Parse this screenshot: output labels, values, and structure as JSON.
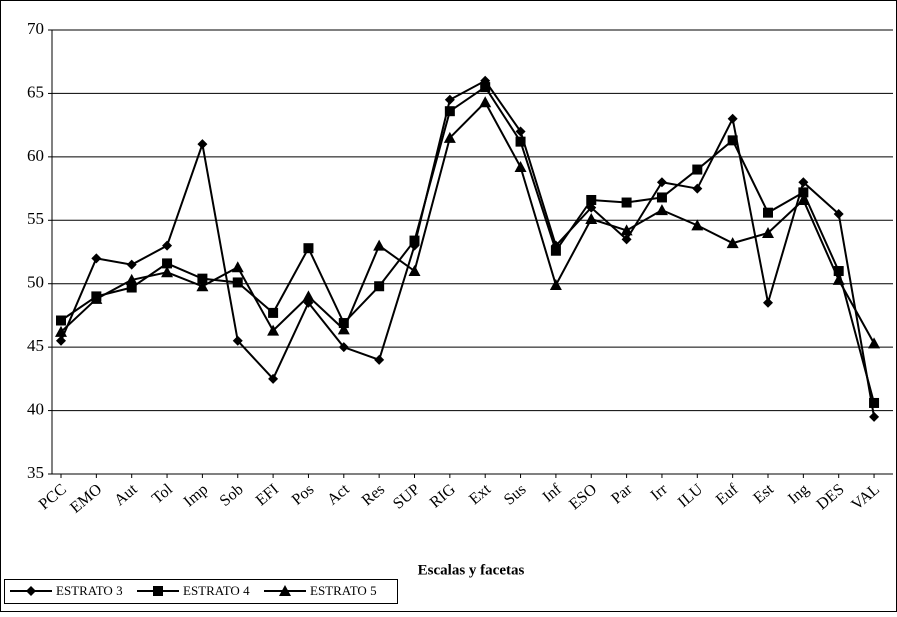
{
  "chart_data": {
    "type": "line",
    "x_label": "Escalas y facetas",
    "categories": [
      "PCC",
      "EMO",
      "Aut",
      "Tol",
      "Imp",
      "Sob",
      "EFI",
      "Pos",
      "Act",
      "Res",
      "SUP",
      "RIG",
      "Ext",
      "Sus",
      "Inf",
      "ESO",
      "Par",
      "Irr",
      "ILU",
      "Euf",
      "Est",
      "Ing",
      "DES",
      "VAL"
    ],
    "series": [
      {
        "name": "ESTRATO 3",
        "color": "#000000",
        "marker": "diamond",
        "values": [
          45.5,
          52,
          51.5,
          53,
          61,
          45.5,
          42.5,
          48.5,
          45,
          44,
          53,
          64.5,
          66,
          62,
          53,
          56,
          53.5,
          58,
          57.5,
          63,
          48.5,
          58,
          55.5,
          39.5
        ]
      },
      {
        "name": "ESTRATO 4",
        "color": "#000000",
        "marker": "square",
        "values": [
          47.1,
          49,
          49.7,
          51.6,
          50.4,
          50.1,
          47.7,
          52.8,
          46.9,
          49.8,
          53.4,
          63.6,
          65.5,
          61.2,
          52.6,
          56.6,
          56.4,
          56.8,
          59,
          61.3,
          55.6,
          57.2,
          51,
          40.6
        ]
      },
      {
        "name": "ESTRATO 5",
        "color": "#000000",
        "marker": "triangle",
        "values": [
          46.2,
          48.8,
          50.3,
          50.9,
          49.8,
          51.3,
          46.3,
          49,
          46.4,
          53,
          51,
          61.5,
          64.3,
          59.2,
          49.9,
          55.1,
          54.2,
          55.8,
          54.6,
          53.2,
          54,
          56.6,
          50.3,
          45.3
        ]
      }
    ],
    "ylim": [
      35,
      70
    ],
    "yticks": [
      35,
      40,
      45,
      50,
      55,
      60,
      65,
      70
    ],
    "grid": true,
    "legend": "bottom-left"
  }
}
